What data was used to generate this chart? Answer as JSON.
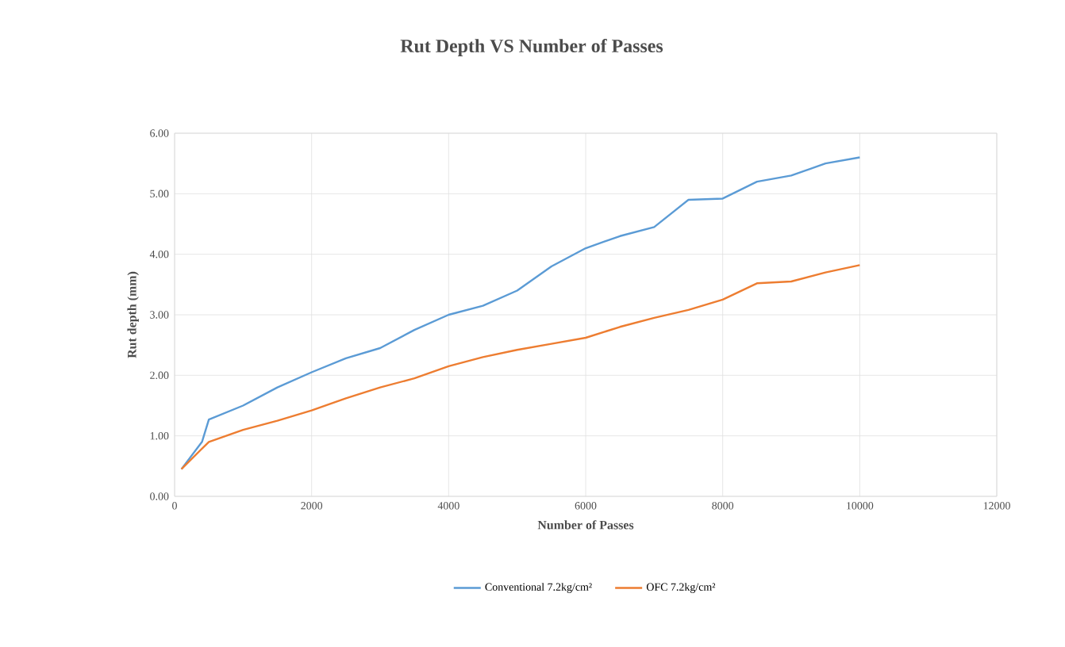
{
  "chart_data": {
    "type": "line",
    "title": "Rut Depth VS Number of Passes",
    "xlabel": "Number of Passes",
    "ylabel": "Rut depth (mm)",
    "xlim": [
      0,
      12000
    ],
    "xticks": [
      0,
      2000,
      4000,
      6000,
      8000,
      10000,
      12000
    ],
    "ylim": [
      0,
      6
    ],
    "yticks": [
      {
        "value": 0,
        "label": "0.00"
      },
      {
        "value": 1,
        "label": "1.00"
      },
      {
        "value": 2,
        "label": "2.00"
      },
      {
        "value": 3,
        "label": "3.00"
      },
      {
        "value": 4,
        "label": "4.00"
      },
      {
        "value": 5,
        "label": "5.00"
      },
      {
        "value": 6,
        "label": "6.00"
      }
    ],
    "grid": true,
    "legend": "bottom",
    "series": [
      {
        "name": "Conventional 7.2kg/cm²",
        "color": "#5b9bd5",
        "x": [
          100,
          400,
          500,
          1000,
          1500,
          2000,
          2500,
          3000,
          3500,
          4000,
          4500,
          5000,
          5500,
          6000,
          6500,
          7000,
          7500,
          8000,
          8500,
          9000,
          9500,
          10000
        ],
        "values": [
          0.45,
          0.9,
          1.27,
          1.5,
          1.8,
          2.05,
          2.28,
          2.45,
          2.75,
          3.0,
          3.15,
          3.4,
          3.8,
          4.1,
          4.3,
          4.45,
          4.9,
          4.92,
          5.2,
          5.3,
          5.5,
          5.6
        ]
      },
      {
        "name": "OFC 7.2kg/cm²",
        "color": "#ed7d31",
        "x": [
          100,
          500,
          1000,
          1500,
          2000,
          2500,
          3000,
          3500,
          4000,
          4500,
          5000,
          5500,
          6000,
          6500,
          7000,
          7500,
          8000,
          8500,
          9000,
          9500,
          10000
        ],
        "values": [
          0.45,
          0.9,
          1.1,
          1.25,
          1.42,
          1.62,
          1.8,
          1.95,
          2.15,
          2.3,
          2.42,
          2.52,
          2.62,
          2.8,
          2.95,
          3.08,
          3.25,
          3.52,
          3.55,
          3.7,
          3.82
        ]
      }
    ]
  }
}
